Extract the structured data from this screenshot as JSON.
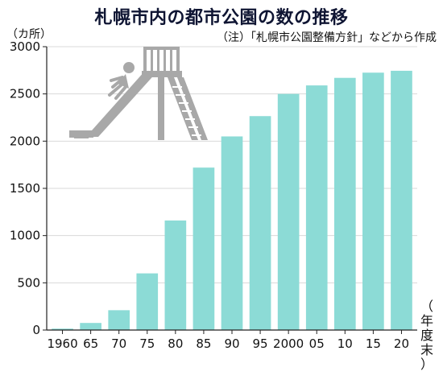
{
  "chart_data": {
    "type": "bar",
    "title": "札幌市内の都市公園の数の推移",
    "unit_label": "（カ所）",
    "note": "（注）「札幌市公園整備方針」などから作成",
    "x_unit_label": "（年度末）",
    "categories": [
      "1960",
      "65",
      "70",
      "75",
      "80",
      "85",
      "90",
      "95",
      "2000",
      "05",
      "10",
      "15",
      "20"
    ],
    "values": [
      15,
      75,
      210,
      600,
      1160,
      1720,
      2050,
      2265,
      2500,
      2590,
      2670,
      2725,
      2745
    ],
    "ylim": [
      0,
      3000
    ],
    "yticks": [
      0,
      500,
      1000,
      1500,
      2000,
      2500,
      3000
    ],
    "grid": true,
    "bar_color": "#8cdbd6",
    "grid_color": "#d9d9d9",
    "illustration": "slide-icon"
  }
}
